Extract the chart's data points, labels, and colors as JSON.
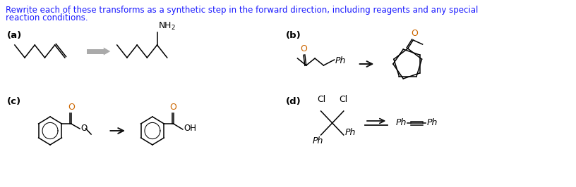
{
  "bg_color": "#ffffff",
  "title_color": "#1a1aff",
  "label_color": "#000000",
  "struct_color": "#000000",
  "orange_color": "#cc6600",
  "title_line1": "Rewrite each of these transforms as a synthetic step in the forward direction, including reagents and any special",
  "title_line2": "reaction conditions.",
  "label_a": "(a)",
  "label_b": "(b)",
  "label_c": "(c)",
  "label_d": "(d)",
  "title_fontsize": 8.5,
  "label_fontsize": 9.5,
  "struct_fontsize": 9.0,
  "dpi": 100,
  "figw": 8.16,
  "figh": 2.66
}
